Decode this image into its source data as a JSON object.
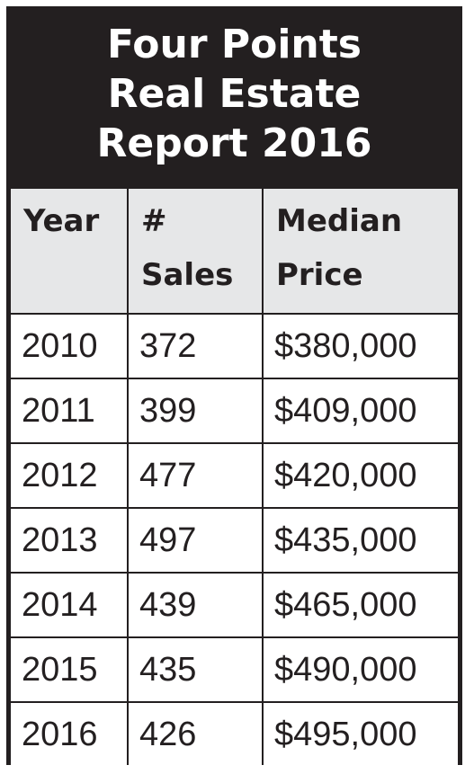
{
  "title": {
    "line1": "Four Points",
    "line2": "Real Estate",
    "line3": "Report 2016"
  },
  "table": {
    "headers": {
      "year": "Year",
      "sales_line1": "#",
      "sales_line2": "Sales",
      "price_line1": "Median",
      "price_line2": "Price"
    },
    "rows": [
      {
        "year": "2010",
        "sales": "372",
        "price": "$380,000"
      },
      {
        "year": "2011",
        "sales": "399",
        "price": "$409,000"
      },
      {
        "year": "2012",
        "sales": "477",
        "price": "$420,000"
      },
      {
        "year": "2013",
        "sales": "497",
        "price": "$435,000"
      },
      {
        "year": "2014",
        "sales": "439",
        "price": "$465,000"
      },
      {
        "year": "2015",
        "sales": "435",
        "price": "$490,000"
      },
      {
        "year": "2016",
        "sales": "426",
        "price": "$495,000"
      }
    ]
  },
  "colors": {
    "border": "#231f20",
    "header_bg": "#e6e7e8",
    "title_text": "#ffffff"
  }
}
